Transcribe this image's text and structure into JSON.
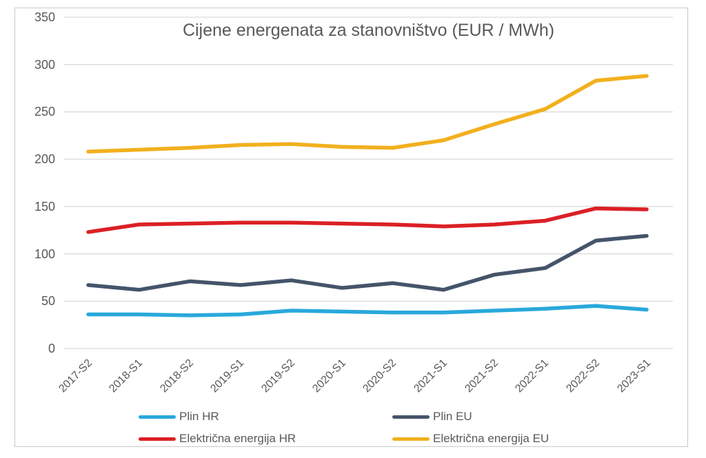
{
  "chart_data": {
    "type": "line",
    "title": "Cijene energenata za stanovništvo (EUR / MWh)",
    "categories": [
      "2017-S2",
      "2018-S1",
      "2018-S2",
      "2019-S1",
      "2019-S2",
      "2020-S1",
      "2020-S2",
      "2021-S1",
      "2021-S2",
      "2022-S1",
      "2022-S2",
      "2023-S1"
    ],
    "series": [
      {
        "name": "Plin HR",
        "color": "#29A8DC",
        "values": [
          36,
          36,
          35,
          36,
          40,
          39,
          38,
          38,
          40,
          42,
          45,
          41
        ]
      },
      {
        "name": "Plin EU",
        "color": "#44546A",
        "values": [
          67,
          62,
          71,
          67,
          72,
          64,
          69,
          62,
          78,
          85,
          114,
          119
        ]
      },
      {
        "name": "Električna energija HR",
        "color": "#DB2025",
        "values": [
          123,
          131,
          132,
          133,
          133,
          132,
          131,
          129,
          131,
          135,
          148,
          147
        ]
      },
      {
        "name": "Električna energija EU",
        "color": "#F2B01E",
        "values": [
          208,
          210,
          212,
          215,
          216,
          213,
          212,
          220,
          237,
          253,
          283,
          288
        ]
      }
    ],
    "y_ticks": [
      0,
      50,
      100,
      150,
      200,
      250,
      300,
      350
    ],
    "ylim": [
      0,
      350
    ],
    "xlabel": "",
    "ylabel": "",
    "grid": true,
    "legend_position": "bottom-2x2"
  },
  "colors": {
    "text": "#595959",
    "gridline": "#d9d9d9",
    "frame_border": "#c9c9c9",
    "background": "#ffffff"
  }
}
